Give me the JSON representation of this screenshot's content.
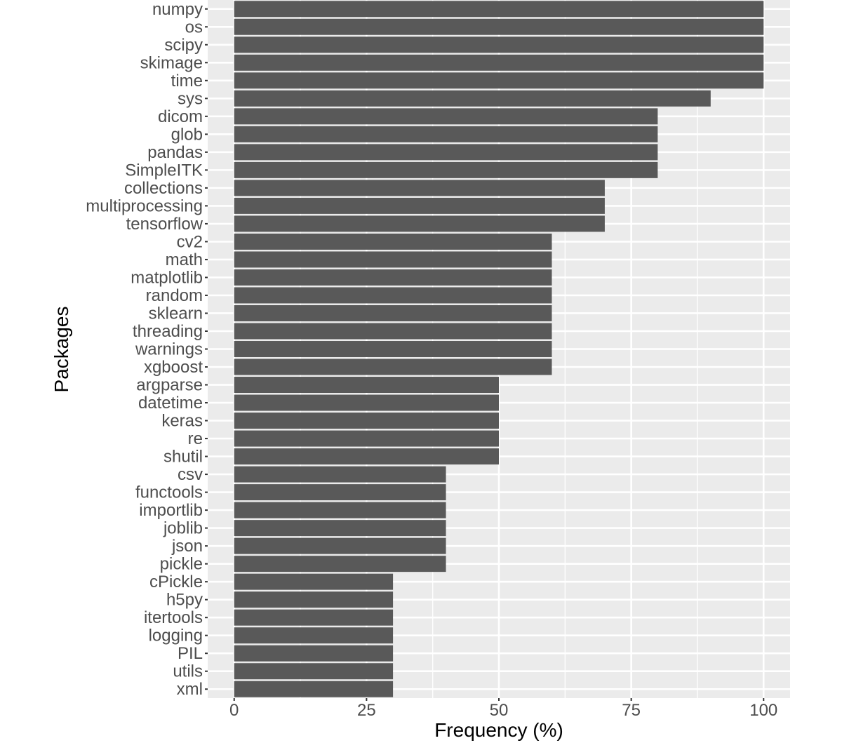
{
  "chart_data": {
    "type": "bar",
    "orientation": "horizontal",
    "title": "",
    "xlabel": "Frequency (%)",
    "ylabel": "Packages",
    "xlim": [
      -5,
      105
    ],
    "xticks": [
      0,
      25,
      50,
      75,
      100
    ],
    "grid": true,
    "legend": "none",
    "categories": [
      "numpy",
      "os",
      "scipy",
      "skimage",
      "time",
      "sys",
      "dicom",
      "glob",
      "pandas",
      "SimpleITK",
      "collections",
      "multiprocessing",
      "tensorflow",
      "cv2",
      "math",
      "matplotlib",
      "random",
      "sklearn",
      "threading",
      "warnings",
      "xgboost",
      "argparse",
      "datetime",
      "keras",
      "re",
      "shutil",
      "csv",
      "functools",
      "importlib",
      "joblib",
      "json",
      "pickle",
      "cPickle",
      "h5py",
      "itertools",
      "logging",
      "PIL",
      "utils",
      "xml"
    ],
    "values": [
      100,
      100,
      100,
      100,
      100,
      90,
      80,
      80,
      80,
      80,
      70,
      70,
      70,
      60,
      60,
      60,
      60,
      60,
      60,
      60,
      60,
      50,
      50,
      50,
      50,
      50,
      40,
      40,
      40,
      40,
      40,
      40,
      30,
      30,
      30,
      30,
      30,
      30,
      30
    ],
    "colors": {
      "bar": "#595959",
      "panel": "#ebebeb",
      "grid": "#ffffff",
      "tick_text": "#4d4d4d"
    }
  }
}
